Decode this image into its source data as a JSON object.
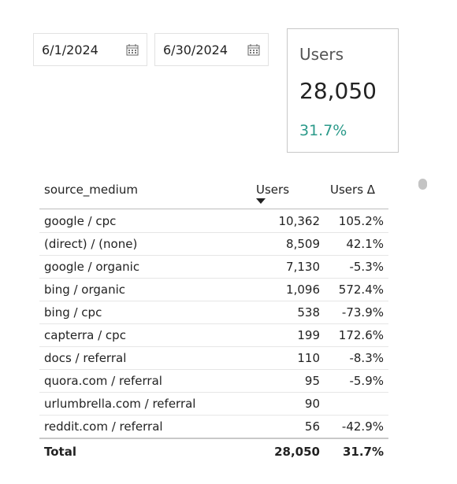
{
  "date_range": {
    "start": "6/1/2024",
    "end": "6/30/2024"
  },
  "scorecard": {
    "label": "Users",
    "value": "28,050",
    "delta": "31.7%"
  },
  "table": {
    "columns": [
      "source_medium",
      "Users",
      "Users Δ"
    ],
    "rows": [
      [
        "google / cpc",
        "10,362",
        "105.2%"
      ],
      [
        "(direct) / (none)",
        "8,509",
        "42.1%"
      ],
      [
        "google / organic",
        "7,130",
        "-5.3%"
      ],
      [
        "bing / organic",
        "1,096",
        "572.4%"
      ],
      [
        "bing / cpc",
        "538",
        "-73.9%"
      ],
      [
        "capterra / cpc",
        "199",
        "172.6%"
      ],
      [
        "docs / referral",
        "110",
        "-8.3%"
      ],
      [
        "quora.com / referral",
        "95",
        "-5.9%"
      ],
      [
        "urlumbrella.com / referral",
        "90",
        null
      ],
      [
        "reddit.com / referral",
        "56",
        "-42.9%"
      ]
    ],
    "total": [
      "Total",
      "28,050",
      "31.7%"
    ]
  }
}
